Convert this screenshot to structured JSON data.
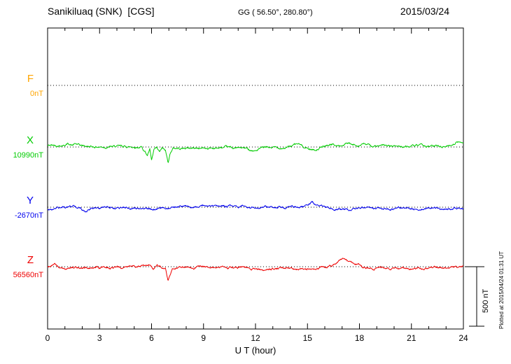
{
  "header": {
    "station_title": "Sanikiluaq (SNK)  [CGS]",
    "gg_coords": "GG ( 56.50°, 280.80°)",
    "date": "2015/03/24"
  },
  "footer": {
    "xaxis_label": "U T (hour)"
  },
  "scale_bar": {
    "label": "500 nT",
    "nT": 500
  },
  "plotted_note": "Plotted at 2015/04/24 01:31 UT",
  "colors": {
    "axis": "#000000",
    "background": "#FFFFFF"
  },
  "chart_data": {
    "type": "line",
    "title": "Sanikiluaq (SNK) [CGS] magnetogram 2015/03/24",
    "xlabel": "U T (hour)",
    "ylabel": "",
    "x_range": [
      0,
      24
    ],
    "x_ticks": [
      0,
      3,
      6,
      9,
      12,
      15,
      18,
      21,
      24
    ],
    "x_minor_tick_step": 1,
    "grid": "dotted horizontal baselines per component",
    "scale_nT_per_division": 500,
    "noise_nT": 10,
    "series": [
      {
        "id": "F",
        "label": "F",
        "baseline_text": "0nT",
        "baseline_nT": 0,
        "color": "#FFA500",
        "trace_visible": false,
        "anchors_hour_dnT": [
          [
            0,
            0
          ],
          [
            24,
            0
          ]
        ]
      },
      {
        "id": "X",
        "label": "X",
        "baseline_text": "10990nT",
        "baseline_nT": 10990,
        "color": "#00CC00",
        "trace_visible": true,
        "anchors_hour_dnT": [
          [
            0,
            12
          ],
          [
            0.5,
            15
          ],
          [
            1,
            20
          ],
          [
            1.2,
            30
          ],
          [
            1.4,
            15
          ],
          [
            1.6,
            25
          ],
          [
            1.9,
            10
          ],
          [
            2.5,
            3
          ],
          [
            3.5,
            2
          ],
          [
            4.5,
            2
          ],
          [
            5.4,
            2
          ],
          [
            5.65,
            -40
          ],
          [
            5.75,
            -70
          ],
          [
            5.9,
            -25
          ],
          [
            6,
            -118
          ],
          [
            6.15,
            -30
          ],
          [
            6.3,
            -15
          ],
          [
            6.45,
            -50
          ],
          [
            6.6,
            -15
          ],
          [
            6.8,
            -35
          ],
          [
            6.95,
            -130
          ],
          [
            7.1,
            -40
          ],
          [
            7.25,
            -10
          ],
          [
            7.6,
            -9
          ],
          [
            8.5,
            -9
          ],
          [
            9.5,
            -8
          ],
          [
            10.5,
            -9
          ],
          [
            11.3,
            -10
          ],
          [
            11.8,
            -25
          ],
          [
            12,
            -32
          ],
          [
            12.2,
            -18
          ],
          [
            12.5,
            -8
          ],
          [
            13,
            -6
          ],
          [
            13.8,
            -4
          ],
          [
            14.2,
            15
          ],
          [
            14.45,
            26
          ],
          [
            14.7,
            8
          ],
          [
            15.1,
            -15
          ],
          [
            15.4,
            -24
          ],
          [
            15.7,
            -10
          ],
          [
            16.1,
            10
          ],
          [
            16.4,
            24
          ],
          [
            16.7,
            8
          ],
          [
            17,
            12
          ],
          [
            17.3,
            30
          ],
          [
            17.6,
            12
          ],
          [
            18,
            18
          ],
          [
            18.3,
            26
          ],
          [
            18.6,
            10
          ],
          [
            19,
            6
          ],
          [
            19.8,
            8
          ],
          [
            20.6,
            5
          ],
          [
            21.4,
            7
          ],
          [
            22.2,
            5
          ],
          [
            23,
            8
          ],
          [
            23.3,
            18
          ],
          [
            23.6,
            45
          ],
          [
            23.8,
            38
          ],
          [
            24,
            42
          ]
        ]
      },
      {
        "id": "Y",
        "label": "Y",
        "baseline_text": "-2670nT",
        "baseline_nT": -2670,
        "color": "#0000EE",
        "trace_visible": true,
        "anchors_hour_dnT": [
          [
            0,
            -18
          ],
          [
            0.4,
            -12
          ],
          [
            0.8,
            -8
          ],
          [
            1.3,
            5
          ],
          [
            1.6,
            12
          ],
          [
            1.9,
            0
          ],
          [
            2.2,
            -30
          ],
          [
            2.5,
            -12
          ],
          [
            3,
            -6
          ],
          [
            4,
            -4
          ],
          [
            5,
            -5
          ],
          [
            5.6,
            -8
          ],
          [
            6,
            -18
          ],
          [
            6.3,
            -24
          ],
          [
            6.6,
            -10
          ],
          [
            7,
            0
          ],
          [
            8,
            6
          ],
          [
            9,
            9
          ],
          [
            10,
            9
          ],
          [
            11,
            8
          ],
          [
            12,
            4
          ],
          [
            12.5,
            -2
          ],
          [
            13,
            2
          ],
          [
            13.4,
            8
          ],
          [
            13.8,
            -4
          ],
          [
            14.2,
            6
          ],
          [
            14.6,
            2
          ],
          [
            15,
            14
          ],
          [
            15.25,
            45
          ],
          [
            15.5,
            18
          ],
          [
            15.8,
            4
          ],
          [
            16.2,
            -4
          ],
          [
            16.8,
            -8
          ],
          [
            17.4,
            -22
          ],
          [
            17.7,
            -10
          ],
          [
            18.1,
            -16
          ],
          [
            18.5,
            -10
          ],
          [
            19,
            -12
          ],
          [
            20,
            -10
          ],
          [
            21,
            -12
          ],
          [
            22,
            -9
          ],
          [
            23,
            -12
          ],
          [
            24,
            -9
          ]
        ]
      },
      {
        "id": "Z",
        "label": "Z",
        "baseline_text": "56560nT",
        "baseline_nT": 56560,
        "color": "#EE0000",
        "trace_visible": true,
        "anchors_hour_dnT": [
          [
            0,
            0
          ],
          [
            0.4,
            16
          ],
          [
            0.7,
            -8
          ],
          [
            0.9,
            -18
          ],
          [
            1.1,
            -24
          ],
          [
            1.3,
            -8
          ],
          [
            1.6,
            -4
          ],
          [
            2,
            -6
          ],
          [
            2.6,
            -8
          ],
          [
            3.2,
            -4
          ],
          [
            4,
            -6
          ],
          [
            4.8,
            -3
          ],
          [
            5.4,
            0
          ],
          [
            5.7,
            14
          ],
          [
            5.9,
            22
          ],
          [
            6.1,
            -16
          ],
          [
            6.35,
            10
          ],
          [
            6.6,
            -6
          ],
          [
            6.8,
            -20
          ],
          [
            6.95,
            -128
          ],
          [
            7.05,
            -90
          ],
          [
            7.2,
            -25
          ],
          [
            7.4,
            -10
          ],
          [
            7.8,
            -8
          ],
          [
            8.5,
            -6
          ],
          [
            9.5,
            -8
          ],
          [
            10.5,
            -6
          ],
          [
            11.5,
            -8
          ],
          [
            12.1,
            -12
          ],
          [
            12.5,
            -34
          ],
          [
            12.8,
            -18
          ],
          [
            13.2,
            -12
          ],
          [
            13.8,
            -10
          ],
          [
            14.3,
            -28
          ],
          [
            14.7,
            -14
          ],
          [
            15.1,
            -22
          ],
          [
            15.6,
            -8
          ],
          [
            16,
            -4
          ],
          [
            16.4,
            4
          ],
          [
            16.7,
            30
          ],
          [
            16.95,
            68
          ],
          [
            17.15,
            72
          ],
          [
            17.4,
            40
          ],
          [
            17.7,
            26
          ],
          [
            18,
            12
          ],
          [
            18.3,
            -10
          ],
          [
            18.7,
            -14
          ],
          [
            19.2,
            -12
          ],
          [
            20,
            -14
          ],
          [
            21,
            -12
          ],
          [
            22,
            -14
          ],
          [
            23,
            -10
          ],
          [
            23.6,
            -8
          ],
          [
            24,
            -4
          ]
        ]
      }
    ]
  }
}
